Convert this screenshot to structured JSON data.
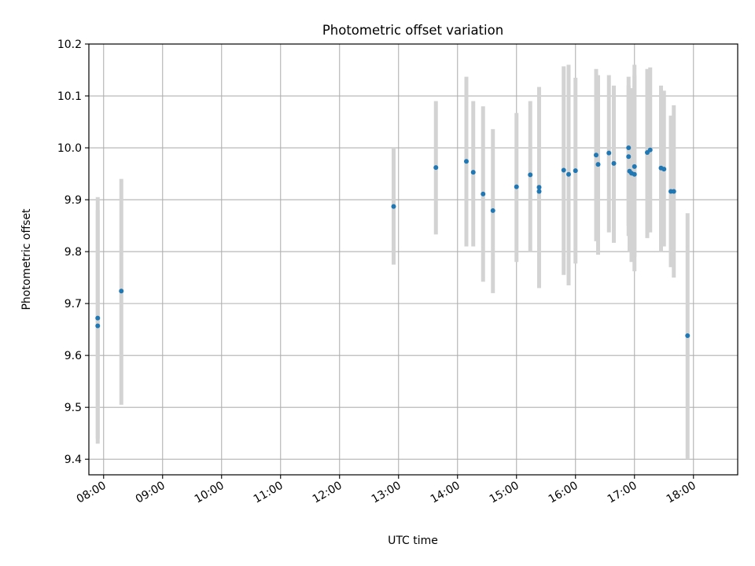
{
  "chart_data": {
    "type": "scatter",
    "title": "Photometric offset variation",
    "xlabel": "UTC time",
    "ylabel": "Photometric offset",
    "xlim": [
      "07:45",
      "18:45"
    ],
    "ylim": [
      9.37,
      10.2
    ],
    "grid": true,
    "x_ticks": [
      "08:00",
      "09:00",
      "10:00",
      "11:00",
      "12:00",
      "13:00",
      "14:00",
      "15:00",
      "16:00",
      "17:00",
      "18:00"
    ],
    "y_ticks": [
      "9.4",
      "9.5",
      "9.6",
      "9.7",
      "9.8",
      "9.9",
      "10.0",
      "10.1",
      "10.2"
    ],
    "colors": {
      "point": "#1f77b4",
      "errorbar": "#d3d3d3",
      "grid": "#b0b0b0"
    },
    "points": [
      {
        "x": "07:54",
        "y": 9.672,
        "err_low": 9.43,
        "err_high": 9.905
      },
      {
        "x": "07:54",
        "y": 9.657,
        "err_low": 9.44,
        "err_high": 9.88
      },
      {
        "x": "08:18",
        "y": 9.724,
        "err_low": 9.505,
        "err_high": 9.94
      },
      {
        "x": "12:55",
        "y": 9.887,
        "err_low": 9.775,
        "err_high": 10.0
      },
      {
        "x": "13:38",
        "y": 9.962,
        "err_low": 9.833,
        "err_high": 10.09
      },
      {
        "x": "14:09",
        "y": 9.974,
        "err_low": 9.81,
        "err_high": 10.137
      },
      {
        "x": "14:16",
        "y": 9.953,
        "err_low": 9.81,
        "err_high": 10.09
      },
      {
        "x": "14:26",
        "y": 9.911,
        "err_low": 9.742,
        "err_high": 10.08
      },
      {
        "x": "14:36",
        "y": 9.879,
        "err_low": 9.72,
        "err_high": 10.036
      },
      {
        "x": "15:00",
        "y": 9.925,
        "err_low": 9.78,
        "err_high": 10.067
      },
      {
        "x": "15:14",
        "y": 9.948,
        "err_low": 9.8,
        "err_high": 10.09
      },
      {
        "x": "15:23",
        "y": 9.924,
        "err_low": 9.73,
        "err_high": 10.117
      },
      {
        "x": "15:23",
        "y": 9.916,
        "err_low": 9.73,
        "err_high": 10.117
      },
      {
        "x": "15:48",
        "y": 9.957,
        "err_low": 9.755,
        "err_high": 10.157
      },
      {
        "x": "15:53",
        "y": 9.949,
        "err_low": 9.735,
        "err_high": 10.16
      },
      {
        "x": "16:00",
        "y": 9.956,
        "err_low": 9.777,
        "err_high": 10.135
      },
      {
        "x": "16:21",
        "y": 9.986,
        "err_low": 9.82,
        "err_high": 10.152
      },
      {
        "x": "16:23",
        "y": 9.968,
        "err_low": 9.794,
        "err_high": 10.14
      },
      {
        "x": "16:34",
        "y": 9.99,
        "err_low": 9.837,
        "err_high": 10.14
      },
      {
        "x": "16:39",
        "y": 9.97,
        "err_low": 9.817,
        "err_high": 10.12
      },
      {
        "x": "16:54",
        "y": 10.0,
        "err_low": 9.85,
        "err_high": 10.137
      },
      {
        "x": "16:54",
        "y": 9.983,
        "err_low": 9.83,
        "err_high": 10.12
      },
      {
        "x": "16:55",
        "y": 9.955,
        "err_low": 9.8,
        "err_high": 10.1
      },
      {
        "x": "16:57",
        "y": 9.951,
        "err_low": 9.78,
        "err_high": 10.115
      },
      {
        "x": "17:00",
        "y": 9.949,
        "err_low": 9.762,
        "err_high": 10.16
      },
      {
        "x": "17:00",
        "y": 9.964,
        "err_low": 9.79,
        "err_high": 10.14
      },
      {
        "x": "17:13",
        "y": 9.991,
        "err_low": 9.826,
        "err_high": 10.152
      },
      {
        "x": "17:16",
        "y": 9.996,
        "err_low": 9.837,
        "err_high": 10.155
      },
      {
        "x": "17:27",
        "y": 9.961,
        "err_low": 9.8,
        "err_high": 10.12
      },
      {
        "x": "17:30",
        "y": 9.959,
        "err_low": 9.81,
        "err_high": 10.11
      },
      {
        "x": "17:37",
        "y": 9.916,
        "err_low": 9.77,
        "err_high": 10.062
      },
      {
        "x": "17:40",
        "y": 9.916,
        "err_low": 9.75,
        "err_high": 10.082
      },
      {
        "x": "17:54",
        "y": 9.638,
        "err_low": 9.4,
        "err_high": 9.874
      }
    ]
  }
}
